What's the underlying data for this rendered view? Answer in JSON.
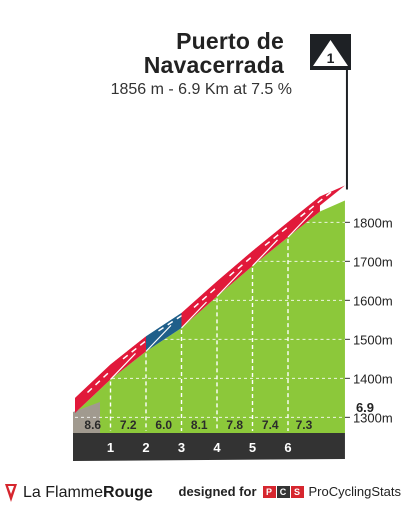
{
  "climb": {
    "title_line1": "Puerto de",
    "title_line2": "Navacerrada",
    "subtitle": "1856 m - 6.9 Km at 7.5 %",
    "category_badge": "1"
  },
  "chart_data": {
    "type": "area",
    "title": "Puerto de Navacerrada",
    "subtitle": "1856 m - 6.9 Km at 7.5 %",
    "xlabel": "",
    "ylabel": "",
    "x_unit": "km",
    "y_unit": "m",
    "xlim": [
      0,
      6.9
    ],
    "ylim": [
      1200,
      1856
    ],
    "km_markers": [
      "1",
      "2",
      "3",
      "4",
      "5",
      "6"
    ],
    "y_ticks": [
      {
        "value": 1300,
        "label": "1300m"
      },
      {
        "value": 1400,
        "label": "1400m"
      },
      {
        "value": 1500,
        "label": "1500m"
      },
      {
        "value": 1600,
        "label": "1600m"
      },
      {
        "value": 1700,
        "label": "1700m"
      },
      {
        "value": 1800,
        "label": "1800m"
      }
    ],
    "segments": [
      {
        "from_km": 0,
        "to_km": 1,
        "gradient": 8.6,
        "gradient_label": "8.6",
        "color": "#e1193a"
      },
      {
        "from_km": 1,
        "to_km": 2,
        "gradient": 7.2,
        "gradient_label": "7.2",
        "color": "#e1193a"
      },
      {
        "from_km": 2,
        "to_km": 3,
        "gradient": 6.0,
        "gradient_label": "6.0",
        "color": "#1f5f8a"
      },
      {
        "from_km": 3,
        "to_km": 4,
        "gradient": 8.1,
        "gradient_label": "8.1",
        "color": "#e1193a"
      },
      {
        "from_km": 4,
        "to_km": 5,
        "gradient": 7.8,
        "gradient_label": "7.8",
        "color": "#e1193a"
      },
      {
        "from_km": 5,
        "to_km": 6,
        "gradient": 7.4,
        "gradient_label": "7.4",
        "color": "#e1193a"
      },
      {
        "from_km": 6,
        "to_km": 6.9,
        "gradient": 7.3,
        "gradient_label": "7.3",
        "color": "#e1193a"
      }
    ],
    "end_km_label": "6.9",
    "grid": true,
    "colors": {
      "fill": "#8cc83a",
      "ribbon_steep": "#e1193a",
      "ribbon_moderate": "#1f5f8a",
      "base": "#333333",
      "base_left": "#a19a8f",
      "badge": "#1e2125"
    }
  },
  "footer": {
    "brand_regular": "La Flamme",
    "brand_bold": "Rouge",
    "designed_for": "designed for",
    "pcs_letters": [
      "P",
      "C",
      "S"
    ],
    "pcs_name": "ProCyclingStats"
  }
}
